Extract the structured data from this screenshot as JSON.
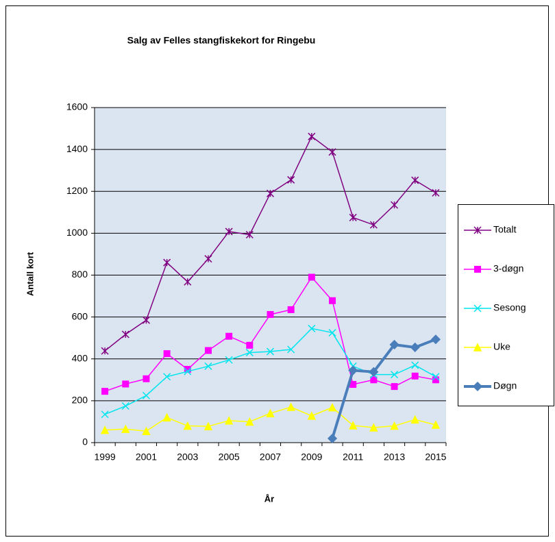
{
  "chart_data": {
    "type": "line",
    "title": "Salg av Felles stangfiskekort for Ringebu",
    "x_label": "År",
    "y_label": "Antall kort",
    "categories": [
      "1999",
      null,
      "2001",
      null,
      "2003",
      null,
      "2005",
      null,
      "2007",
      null,
      "2009",
      null,
      "2011",
      null,
      "2013",
      null,
      "2015"
    ],
    "ylim": [
      0,
      1600
    ],
    "yticks": [
      0,
      200,
      400,
      600,
      800,
      1000,
      1200,
      1400,
      1600
    ],
    "grid": true,
    "legend": "right",
    "series": [
      {
        "name": "Totalt",
        "color": "#800080",
        "marker": "star",
        "values": [
          438,
          517,
          585,
          860,
          768,
          878,
          1008,
          993,
          1190,
          1255,
          1462,
          1388,
          1075,
          1040,
          1135,
          1253,
          1193
        ]
      },
      {
        "name": "3-døgn",
        "color": "#ff00ff",
        "marker": "square",
        "values": [
          245,
          280,
          305,
          425,
          350,
          440,
          508,
          465,
          612,
          635,
          790,
          678,
          278,
          300,
          268,
          318,
          300
        ]
      },
      {
        "name": "Sesong",
        "color": "#00e5ee",
        "marker": "x",
        "values": [
          135,
          175,
          225,
          315,
          340,
          365,
          395,
          430,
          435,
          445,
          545,
          525,
          365,
          325,
          325,
          370,
          315
        ]
      },
      {
        "name": "Uke",
        "color": "#ffff00",
        "marker": "triangle",
        "values": [
          60,
          65,
          55,
          120,
          80,
          78,
          105,
          100,
          140,
          170,
          128,
          168,
          82,
          72,
          80,
          110,
          85
        ]
      },
      {
        "name": "Døgn",
        "color": "#4a7ebb",
        "marker": "diamond",
        "values": [
          null,
          null,
          null,
          null,
          null,
          null,
          null,
          null,
          null,
          null,
          null,
          20,
          345,
          338,
          468,
          455,
          493
        ]
      }
    ]
  }
}
